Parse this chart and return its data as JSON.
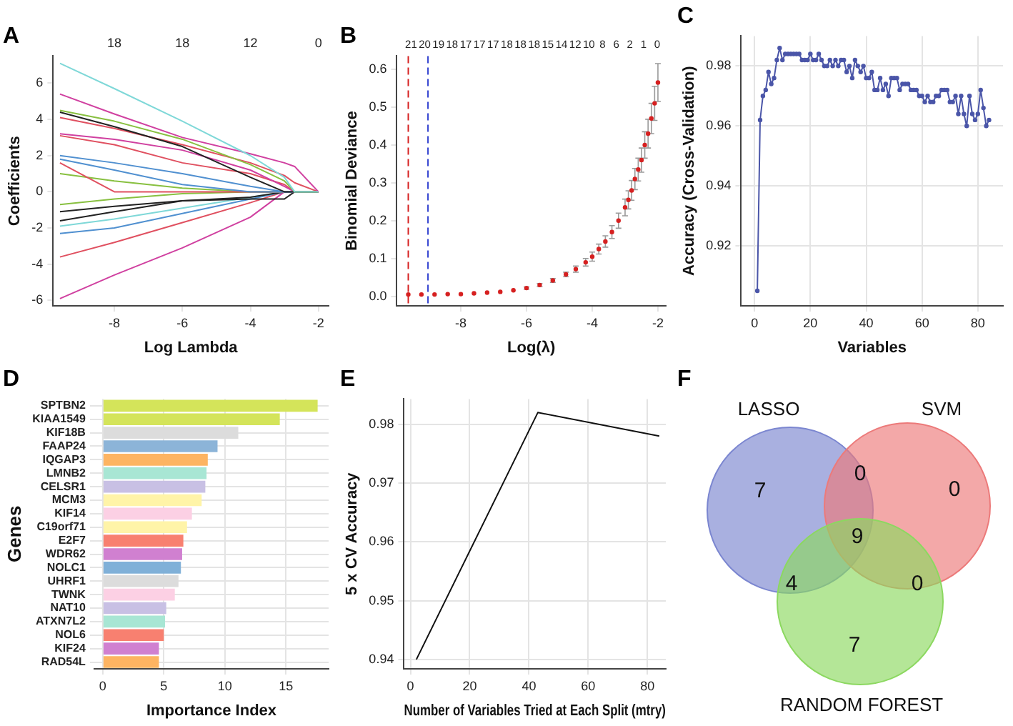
{
  "chart_data": [
    {
      "type": "line",
      "title": "A",
      "xlabel": "Log Lambda",
      "ylabel": "Coefficients",
      "marker": "none",
      "grid": false,
      "legend": false,
      "x": [
        -9.6,
        -8,
        -6,
        -4,
        -3,
        -2.7,
        -2
      ],
      "series": [
        {
          "color": "#7fd8d8",
          "values": [
            7.1,
            5.7,
            3.9,
            2.0,
            0.8,
            0,
            0
          ]
        },
        {
          "color": "#d040a0",
          "values": [
            5.4,
            4.3,
            3.0,
            2.1,
            1.6,
            1.4,
            0
          ]
        },
        {
          "color": "#88c040",
          "values": [
            4.5,
            3.9,
            2.9,
            1.5,
            0.6,
            0,
            0
          ]
        },
        {
          "color": "#222222",
          "values": [
            4.4,
            3.6,
            2.5,
            0.8,
            0,
            0,
            0
          ]
        },
        {
          "color": "#e05060",
          "values": [
            4.1,
            3.5,
            2.6,
            1.6,
            0.9,
            0.5,
            0
          ]
        },
        {
          "color": "#d040a0",
          "values": [
            3.2,
            2.9,
            2.3,
            1.2,
            0.3,
            0,
            0
          ]
        },
        {
          "color": "#e05060",
          "values": [
            3.1,
            2.6,
            1.6,
            1.0,
            0.4,
            0,
            0
          ]
        },
        {
          "color": "#5090d0",
          "values": [
            2.0,
            1.6,
            1.0,
            0.3,
            0,
            0,
            0
          ]
        },
        {
          "color": "#5090d0",
          "values": [
            1.8,
            1.2,
            0.4,
            0,
            0,
            0,
            0
          ]
        },
        {
          "color": "#e05060",
          "values": [
            1.6,
            0,
            0,
            0,
            0,
            0,
            0
          ]
        },
        {
          "color": "#88c040",
          "values": [
            1.0,
            0.6,
            0.2,
            0,
            0,
            0,
            0
          ]
        },
        {
          "color": "#88c040",
          "values": [
            -0.7,
            -0.4,
            -0.1,
            0,
            0,
            0,
            0
          ]
        },
        {
          "color": "#222222",
          "values": [
            -1.1,
            -0.8,
            -0.5,
            -0.3,
            0,
            0,
            0
          ]
        },
        {
          "color": "#222222",
          "values": [
            -1.6,
            -1.1,
            -0.5,
            -0.4,
            -0.4,
            0,
            0
          ]
        },
        {
          "color": "#7fd8d8",
          "values": [
            -1.9,
            -1.5,
            -0.9,
            -0.3,
            0,
            0,
            0
          ]
        },
        {
          "color": "#5090d0",
          "values": [
            -2.3,
            -2.0,
            -1.2,
            -0.4,
            0,
            0,
            0
          ]
        },
        {
          "color": "#e05060",
          "values": [
            -3.6,
            -2.8,
            -1.7,
            -0.6,
            0,
            0,
            0
          ]
        },
        {
          "color": "#d040a0",
          "values": [
            -5.9,
            -4.6,
            -3.1,
            -1.4,
            0,
            0,
            0
          ]
        }
      ],
      "xlim": [
        -9.8,
        -1.7
      ],
      "xticks": [
        -8,
        -6,
        -4,
        -2
      ],
      "annotations": [
        "18",
        "18",
        "12",
        "0"
      ],
      "ylim": [
        -6.3,
        7.5
      ],
      "yticks": [
        -6,
        -4,
        -2,
        0,
        2,
        4,
        6
      ]
    },
    {
      "type": "scatter",
      "title": "B",
      "xlabel": "Log(λ)",
      "ylabel": "Binomial Deviance",
      "marker": "circle",
      "grid": false,
      "legend": false,
      "color": "#d62020",
      "x": [
        -9.6,
        -9.2,
        -8.8,
        -8.4,
        -8.0,
        -7.6,
        -7.2,
        -6.8,
        -6.4,
        -6.0,
        -5.6,
        -5.2,
        -4.8,
        -4.5,
        -4.2,
        -4.0,
        -3.8,
        -3.6,
        -3.4,
        -3.2,
        -3.0,
        -2.9,
        -2.8,
        -2.7,
        -2.6,
        -2.5,
        -2.4,
        -2.3,
        -2.2,
        -2.1,
        -2.0
      ],
      "values": [
        0.005,
        0.005,
        0.005,
        0.006,
        0.006,
        0.008,
        0.01,
        0.012,
        0.016,
        0.022,
        0.03,
        0.042,
        0.058,
        0.072,
        0.09,
        0.105,
        0.125,
        0.145,
        0.17,
        0.2,
        0.235,
        0.255,
        0.28,
        0.31,
        0.335,
        0.36,
        0.4,
        0.43,
        0.47,
        0.51,
        0.565
      ],
      "errors": [
        null,
        null,
        null,
        null,
        null,
        null,
        null,
        null,
        null,
        0.003,
        0.004,
        0.005,
        0.006,
        0.008,
        0.01,
        0.012,
        0.013,
        0.015,
        0.017,
        0.02,
        0.022,
        0.024,
        0.026,
        0.028,
        0.03,
        0.032,
        0.035,
        0.038,
        0.04,
        0.045,
        0.05
      ],
      "ref_lines": [
        {
          "axis": "x",
          "value": -9.6,
          "color": "#d62020",
          "line_style": "dashed"
        },
        {
          "axis": "x",
          "value": -9.0,
          "color": "#3040d0",
          "line_style": "dashed"
        }
      ],
      "xlim": [
        -9.95,
        -1.76
      ],
      "xticks": [
        -8,
        -6,
        -4,
        -2
      ],
      "annotations": [
        "21",
        "20",
        "19",
        "18",
        "17",
        "17",
        "17",
        "18",
        "18",
        "18",
        "15",
        "14",
        "12",
        "10",
        "8",
        "6",
        "2",
        "1",
        "0"
      ],
      "ylim": [
        -0.025,
        0.635
      ],
      "yticks": [
        {
          "value": 0,
          "label": "0.0"
        },
        0.1,
        0.2,
        0.3,
        0.4,
        0.5,
        0.6
      ]
    },
    {
      "type": "line",
      "title": "C",
      "xlabel": "Variables",
      "ylabel": "Accuracy (Cross-Validation)",
      "marker": "circle",
      "grid": true,
      "legend": false,
      "color": "#4a55a8",
      "x": [
        1,
        2,
        3,
        4,
        5,
        6,
        7,
        8,
        9,
        10,
        11,
        12,
        13,
        14,
        15,
        16,
        17,
        18,
        19,
        20,
        21,
        22,
        23,
        24,
        25,
        26,
        27,
        28,
        29,
        30,
        31,
        32,
        33,
        34,
        35,
        36,
        37,
        38,
        39,
        40,
        41,
        42,
        43,
        44,
        45,
        46,
        47,
        48,
        49,
        50,
        51,
        52,
        53,
        54,
        55,
        56,
        57,
        58,
        59,
        60,
        61,
        62,
        63,
        64,
        65,
        66,
        67,
        68,
        69,
        70,
        71,
        72,
        73,
        74,
        75,
        76,
        77,
        78,
        79,
        80,
        81,
        82,
        83,
        84
      ],
      "values": [
        0.905,
        0.962,
        0.97,
        0.972,
        0.978,
        0.974,
        0.976,
        0.982,
        0.986,
        0.982,
        0.984,
        0.984,
        0.984,
        0.984,
        0.984,
        0.984,
        0.982,
        0.982,
        0.982,
        0.984,
        0.982,
        0.982,
        0.984,
        0.982,
        0.98,
        0.98,
        0.982,
        0.98,
        0.982,
        0.98,
        0.982,
        0.982,
        0.978,
        0.98,
        0.976,
        0.982,
        0.98,
        0.978,
        0.98,
        0.976,
        0.976,
        0.978,
        0.972,
        0.972,
        0.976,
        0.972,
        0.974,
        0.97,
        0.976,
        0.976,
        0.976,
        0.972,
        0.974,
        0.974,
        0.974,
        0.972,
        0.972,
        0.972,
        0.97,
        0.97,
        0.968,
        0.97,
        0.968,
        0.968,
        0.97,
        0.97,
        0.972,
        0.972,
        0.972,
        0.968,
        0.968,
        0.97,
        0.964,
        0.97,
        0.964,
        0.96,
        0.97,
        0.964,
        0.962,
        0.964,
        0.972,
        0.966,
        0.96,
        0.962
      ],
      "xlim": [
        -4.8,
        89
      ],
      "xticks": [
        0,
        20,
        40,
        60,
        80
      ],
      "ylim": [
        0.9,
        0.99
      ],
      "yticks": [
        0.92,
        0.94,
        0.96,
        0.98
      ]
    },
    {
      "type": "bar",
      "orientation": "horizontal",
      "title": "D",
      "xlabel": "Importance Index",
      "ylabel": "Genes",
      "grid": true,
      "legend": false,
      "categories": [
        "SPTBN2",
        "KIAA1549",
        "KIF18B",
        "FAAP24",
        "IQGAP3",
        "LMNB2",
        "CELSR1",
        "MCM3",
        "KIF14",
        "C19orf71",
        "E2F7",
        "WDR62",
        "NOLC1",
        "UHRF1",
        "TWNK",
        "NAT10",
        "ATXN7L2",
        "NOL6",
        "KIF24",
        "RAD54L"
      ],
      "values": [
        17.6,
        14.5,
        11.1,
        9.4,
        8.6,
        8.5,
        8.4,
        8.1,
        7.3,
        6.9,
        6.6,
        6.5,
        6.4,
        6.2,
        5.9,
        5.2,
        5.1,
        5.0,
        4.6,
        4.6
      ],
      "colors": [
        "#d4e45a",
        "#d4e45a",
        "#dcdcdc",
        "#8cb4d8",
        "#fdb462",
        "#a8e6d4",
        "#c8c0e4",
        "#fff4a8",
        "#fcd0e4",
        "#fff4a8",
        "#f88070",
        "#d080d0",
        "#80b0d8",
        "#dcdcdc",
        "#fcd0e4",
        "#c8c0e4",
        "#a8e6d4",
        "#f88070",
        "#d080d0",
        "#fdb462"
      ],
      "xlim": [
        -0.7,
        18.5
      ],
      "xticks": [
        0,
        5,
        10,
        15
      ]
    },
    {
      "type": "line",
      "title": "E",
      "xlabel": "Number of Variables Tried at Each Split (mtry)",
      "ylabel": "5 x CV Accuracy",
      "marker": "none",
      "grid": true,
      "legend": false,
      "color": "#111111",
      "x": [
        2,
        43,
        84
      ],
      "values": [
        0.94,
        0.982,
        0.978
      ],
      "xlim": [
        -2.2,
        86.2
      ],
      "xticks": [
        0,
        20,
        40,
        60,
        80
      ],
      "ylim": [
        0.9384,
        0.9843
      ],
      "yticks": [
        0.94,
        0.95,
        0.96,
        0.97,
        0.98
      ]
    },
    {
      "type": "other",
      "title": "F",
      "categories": [
        "LASSO",
        "SVM",
        "RANDOM FOREST"
      ],
      "colors": [
        "#7b86d0",
        "#ec7a7a",
        "#8cd860"
      ],
      "annotations": [
        "7",
        "0",
        "7",
        "0",
        "4",
        "0",
        "9"
      ]
    }
  ]
}
